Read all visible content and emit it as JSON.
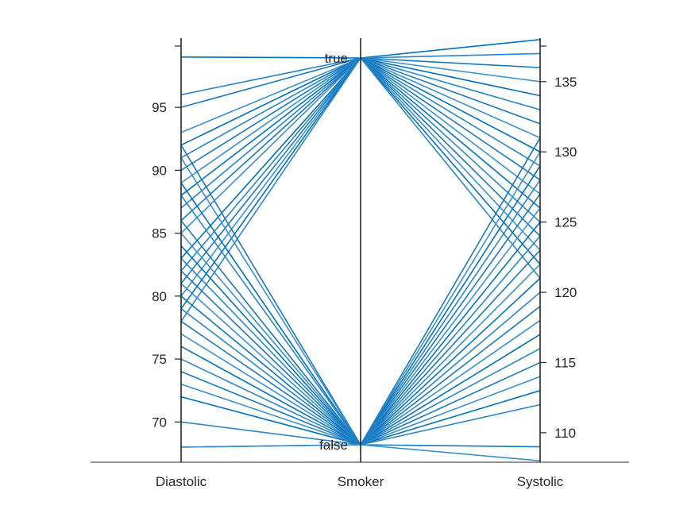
{
  "chart_data": {
    "type": "parallel-coordinates",
    "title": "",
    "colors": {
      "line": "#0072BD",
      "axis": "#262626"
    },
    "axes": [
      {
        "name": "Diastolic",
        "kind": "numeric",
        "lim": [
          66.8,
          100.5
        ],
        "ticks": [
          70,
          75,
          80,
          85,
          90,
          95
        ],
        "tick_side": "left"
      },
      {
        "name": "Smoker",
        "kind": "categorical",
        "categories": [
          "false",
          "true"
        ]
      },
      {
        "name": "Systolic",
        "kind": "numeric",
        "lim": [
          107.9,
          138.1
        ],
        "ticks": [
          110,
          115,
          120,
          125,
          130,
          135
        ],
        "tick_side": "right"
      }
    ],
    "records": [
      {
        "Diastolic": 99,
        "Smoker": "true",
        "Systolic": 138
      },
      {
        "Diastolic": 96,
        "Smoker": "true",
        "Systolic": 137
      },
      {
        "Diastolic": 95,
        "Smoker": "true",
        "Systolic": 136
      },
      {
        "Diastolic": 93,
        "Smoker": "true",
        "Systolic": 135
      },
      {
        "Diastolic": 92,
        "Smoker": "true",
        "Systolic": 134
      },
      {
        "Diastolic": 91,
        "Smoker": "true",
        "Systolic": 133
      },
      {
        "Diastolic": 90,
        "Smoker": "true",
        "Systolic": 132
      },
      {
        "Diastolic": 89,
        "Smoker": "true",
        "Systolic": 131
      },
      {
        "Diastolic": 88,
        "Smoker": "true",
        "Systolic": 130
      },
      {
        "Diastolic": 87,
        "Smoker": "true",
        "Systolic": 129
      },
      {
        "Diastolic": 86,
        "Smoker": "true",
        "Systolic": 128
      },
      {
        "Diastolic": 85,
        "Smoker": "true",
        "Systolic": 127
      },
      {
        "Diastolic": 83,
        "Smoker": "true",
        "Systolic": 126
      },
      {
        "Diastolic": 82,
        "Smoker": "true",
        "Systolic": 125
      },
      {
        "Diastolic": 81,
        "Smoker": "true",
        "Systolic": 124
      },
      {
        "Diastolic": 80,
        "Smoker": "true",
        "Systolic": 123
      },
      {
        "Diastolic": 79,
        "Smoker": "true",
        "Systolic": 122
      },
      {
        "Diastolic": 78,
        "Smoker": "true",
        "Systolic": 121
      },
      {
        "Diastolic": 92,
        "Smoker": "false",
        "Systolic": 131
      },
      {
        "Diastolic": 91,
        "Smoker": "false",
        "Systolic": 130
      },
      {
        "Diastolic": 89,
        "Smoker": "false",
        "Systolic": 129
      },
      {
        "Diastolic": 88,
        "Smoker": "false",
        "Systolic": 128
      },
      {
        "Diastolic": 86,
        "Smoker": "false",
        "Systolic": 127
      },
      {
        "Diastolic": 85,
        "Smoker": "false",
        "Systolic": 126
      },
      {
        "Diastolic": 84,
        "Smoker": "false",
        "Systolic": 125
      },
      {
        "Diastolic": 83,
        "Smoker": "false",
        "Systolic": 124
      },
      {
        "Diastolic": 82,
        "Smoker": "false",
        "Systolic": 123
      },
      {
        "Diastolic": 81,
        "Smoker": "false",
        "Systolic": 122
      },
      {
        "Diastolic": 80,
        "Smoker": "false",
        "Systolic": 121
      },
      {
        "Diastolic": 79,
        "Smoker": "false",
        "Systolic": 120
      },
      {
        "Diastolic": 78,
        "Smoker": "false",
        "Systolic": 119
      },
      {
        "Diastolic": 77,
        "Smoker": "false",
        "Systolic": 118
      },
      {
        "Diastolic": 76,
        "Smoker": "false",
        "Systolic": 117
      },
      {
        "Diastolic": 75,
        "Smoker": "false",
        "Systolic": 116
      },
      {
        "Diastolic": 74,
        "Smoker": "false",
        "Systolic": 115
      },
      {
        "Diastolic": 73,
        "Smoker": "false",
        "Systolic": 114
      },
      {
        "Diastolic": 72,
        "Smoker": "false",
        "Systolic": 113
      },
      {
        "Diastolic": 70,
        "Smoker": "false",
        "Systolic": 112
      },
      {
        "Diastolic": 68,
        "Smoker": "false",
        "Systolic": 109
      },
      {
        "Diastolic": 68,
        "Smoker": "false",
        "Systolic": 108
      }
    ]
  }
}
